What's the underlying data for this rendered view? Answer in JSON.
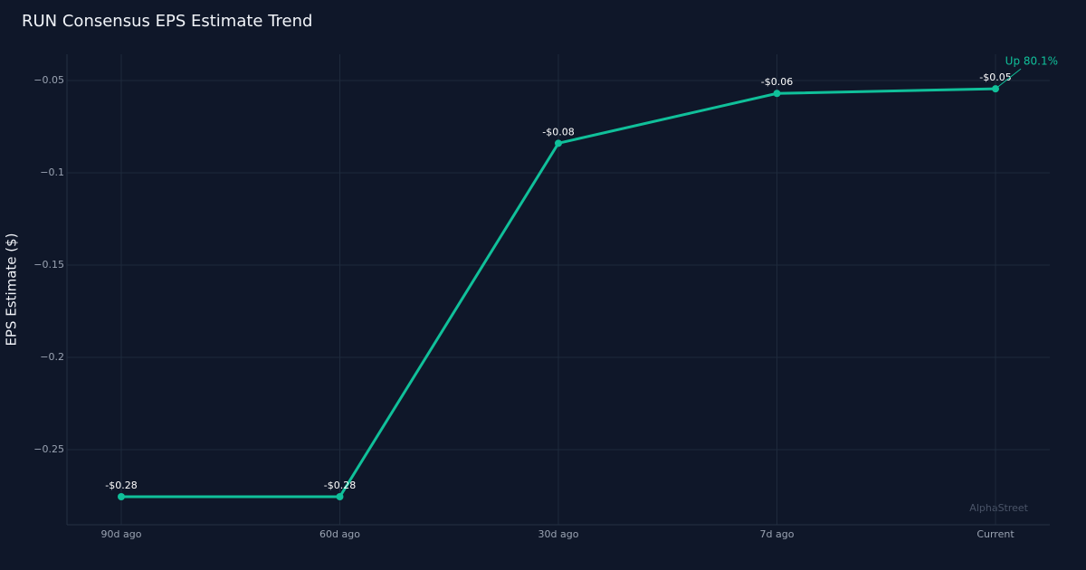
{
  "chart_data": {
    "type": "line",
    "title": "RUN Consensus EPS Estimate Trend",
    "y_label": "EPS Estimate ($)",
    "categories": [
      "90d ago",
      "60d ago",
      "30d ago",
      "7d ago",
      "Current"
    ],
    "values": [
      -0.2755,
      -0.2755,
      -0.084,
      -0.057,
      -0.0545
    ],
    "value_labels": [
      "-$0.28",
      "-$0.28",
      "-$0.08",
      "-$0.06",
      "-$0.05"
    ],
    "color": "#10c09a",
    "ylim": [
      -0.2907,
      -0.0358
    ],
    "yticks": [
      {
        "value": -0.25,
        "label": "−0.25"
      },
      {
        "value": -0.2,
        "label": "−0.2"
      },
      {
        "value": -0.15,
        "label": "−0.15"
      },
      {
        "value": -0.1,
        "label": "−0.1"
      },
      {
        "value": -0.05,
        "label": "−0.05"
      }
    ],
    "grid": true,
    "annotation": "Up 80.1%",
    "watermark": "AlphaStreet"
  }
}
